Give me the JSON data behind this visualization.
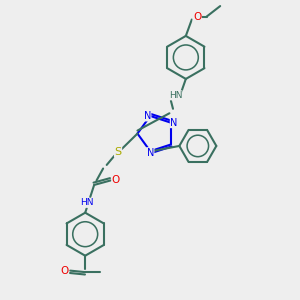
{
  "bg_color": "#eeeeee",
  "bond_color": "#3a7060",
  "N_color": "#0000ee",
  "O_color": "#ee0000",
  "S_color": "#aaaa00",
  "NH_color": "#3a7060",
  "lw": 1.5,
  "figsize": [
    3.0,
    3.0
  ],
  "dpi": 100,
  "xlim": [
    0,
    10
  ],
  "ylim": [
    0,
    10
  ]
}
